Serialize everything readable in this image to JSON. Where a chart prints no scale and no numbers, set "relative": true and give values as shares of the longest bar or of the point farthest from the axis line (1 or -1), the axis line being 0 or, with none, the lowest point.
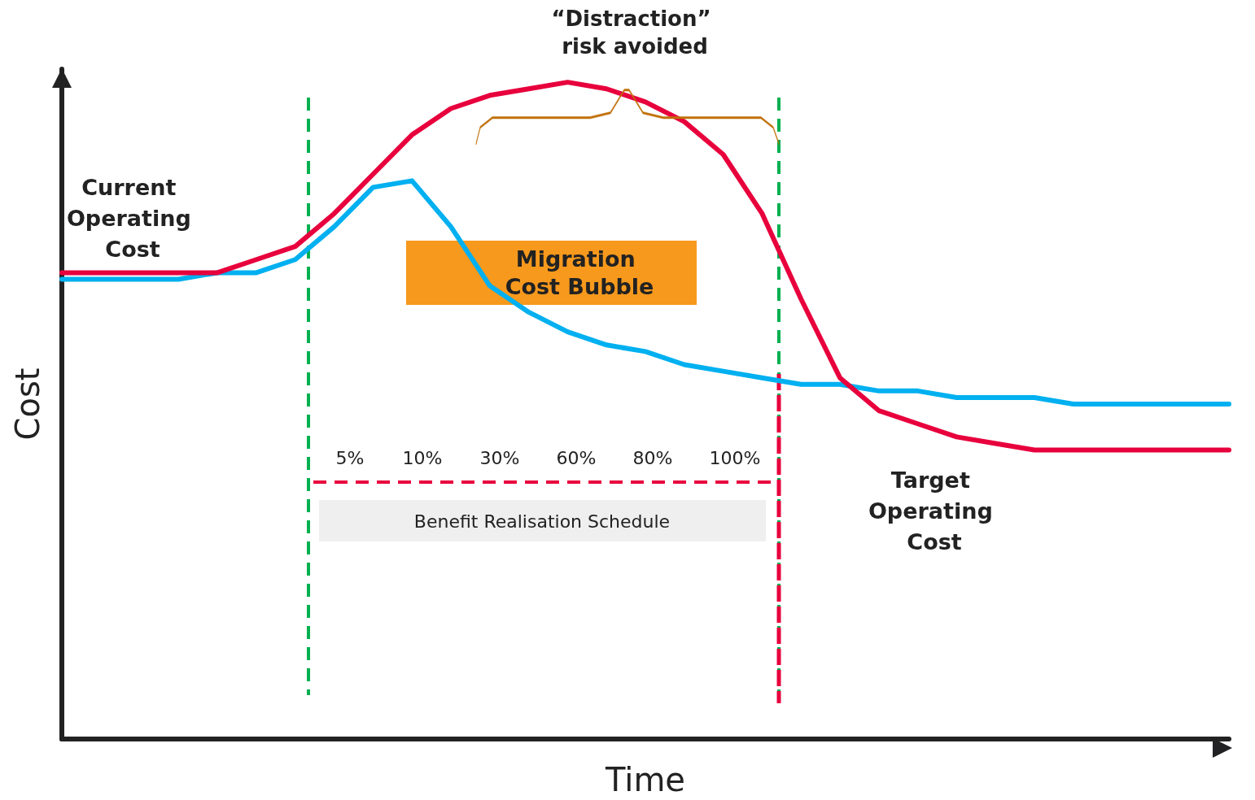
{
  "chart_data": {
    "type": "line",
    "relative": true,
    "xlabel": "Time",
    "ylabel": "Cost",
    "grid": false,
    "marker": "none",
    "line_style": "solid",
    "categories": [
      null,
      null,
      null,
      null,
      null,
      null,
      null,
      null,
      null,
      null,
      null,
      null,
      null,
      null,
      null,
      null,
      null,
      null,
      null,
      null,
      null,
      null,
      null,
      null,
      null,
      null,
      null,
      null,
      null,
      null,
      null
    ],
    "series": [
      {
        "color": "#e8003d",
        "values": [
          0.71,
          0.71,
          0.71,
          0.71,
          0.71,
          0.73,
          0.75,
          0.8,
          0.86,
          0.92,
          0.96,
          0.98,
          0.99,
          1.0,
          0.99,
          0.97,
          0.94,
          0.89,
          0.8,
          0.67,
          0.55,
          0.5,
          0.48,
          0.46,
          0.45,
          0.44,
          0.44,
          0.44,
          0.44,
          0.44,
          0.44
        ]
      },
      {
        "color": "#00b0f0",
        "values": [
          0.7,
          0.7,
          0.7,
          0.7,
          0.71,
          0.71,
          0.73,
          0.78,
          0.84,
          0.85,
          0.78,
          0.69,
          0.65,
          0.62,
          0.6,
          0.59,
          0.57,
          0.56,
          0.55,
          0.54,
          0.54,
          0.53,
          0.53,
          0.52,
          0.52,
          0.52,
          0.51,
          0.51,
          0.51,
          0.51,
          0.51
        ]
      }
    ],
    "annotations": [
      "“Distraction” risk avoided",
      "Current Operating Cost",
      "Migration Cost Bubble",
      "5%",
      "10%",
      "30%",
      "60%",
      "80%",
      "100%",
      "Benefit Realisation Schedule",
      "Target Operating Cost"
    ]
  }
}
